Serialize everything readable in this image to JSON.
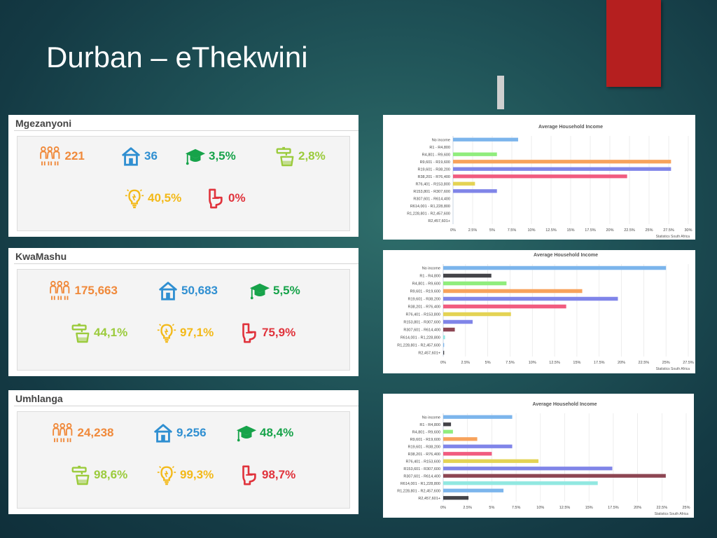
{
  "slide": {
    "title": "Durban – eThekwini"
  },
  "colors": {
    "orange": "#f0893a",
    "blue": "#2f8fd1",
    "green": "#17a34a",
    "lime": "#9bcb3c",
    "yellow": "#f3b918",
    "red": "#e0333c"
  },
  "panels": [
    {
      "name": "Mgezanyoni",
      "stats": {
        "population": "221",
        "households": "36",
        "education": "3,5%",
        "water": "2,8%",
        "electricity": "40,5%",
        "sanitation": "0%"
      }
    },
    {
      "name": "KwaMashu",
      "stats": {
        "population": "175,663",
        "households": "50,683",
        "education": "5,5%",
        "water": "44,1%",
        "electricity": "97,1%",
        "sanitation": "75,9%"
      }
    },
    {
      "name": "Umhlanga",
      "stats": {
        "population": "24,238",
        "households": "9,256",
        "education": "48,4%",
        "water": "98,6%",
        "electricity": "99,3%",
        "sanitation": "98,7%"
      }
    }
  ],
  "icons": {
    "population": "people-group-icon",
    "households": "house-icon",
    "education": "graduation-cap-icon",
    "water": "water-tap-icon",
    "electricity": "light-bulb-icon",
    "sanitation": "toilet-icon"
  },
  "chart_data": [
    {
      "type": "bar",
      "orientation": "horizontal",
      "title": "Average Household Income",
      "source": "Statistics South Africa",
      "categories": [
        "No income",
        "R1 - R4,800",
        "R4,801 - R9,600",
        "R9,601 - R19,600",
        "R19,601 - R38,200",
        "R38,201 - R76,400",
        "R76,401 - R153,800",
        "R153,801 - R307,600",
        "R307,601 - R614,400",
        "R614,001 - R1,228,800",
        "R1,228,801 - R2,457,600",
        "R2,457,601+"
      ],
      "values": [
        8.3,
        0,
        5.6,
        27.8,
        27.8,
        22.2,
        2.8,
        5.6,
        0,
        0,
        0,
        0
      ],
      "colors": [
        "#7cb5ec",
        "#434348",
        "#90ed7d",
        "#f7a35c",
        "#8085e9",
        "#f15c80",
        "#e4d354",
        "#8085e8",
        "#8d4653",
        "#91e8e1",
        "#7cb5ec",
        "#434348"
      ],
      "xlim": [
        0,
        30
      ],
      "xticks": [
        "0%",
        "2.5%",
        "5%",
        "7.5%",
        "10%",
        "12.5%",
        "15%",
        "17.5%",
        "20%",
        "22.5%",
        "25%",
        "27.5%",
        "30%"
      ],
      "grid": true
    },
    {
      "type": "bar",
      "orientation": "horizontal",
      "title": "Average Household Income",
      "source": "Statistics South Africa",
      "categories": [
        "No income",
        "R1 - R4,800",
        "R4,801 - R9,600",
        "R9,601 - R19,600",
        "R19,601 - R38,200",
        "R38,201 - R76,400",
        "R76,401 - R153,800",
        "R153,801 - R307,600",
        "R307,601 - R614,400",
        "R614,001 - R1,228,800",
        "R1,228,801 - R2,457,600",
        "R2,457,601+"
      ],
      "values": [
        25.0,
        5.4,
        7.1,
        15.6,
        19.6,
        13.8,
        7.6,
        3.3,
        1.3,
        0.2,
        0.1,
        0.1
      ],
      "colors": [
        "#7cb5ec",
        "#434348",
        "#90ed7d",
        "#f7a35c",
        "#8085e9",
        "#f15c80",
        "#e4d354",
        "#8085e8",
        "#8d4653",
        "#91e8e1",
        "#7cb5ec",
        "#434348"
      ],
      "xlim": [
        0,
        27.5
      ],
      "xticks": [
        "0%",
        "2.5%",
        "5%",
        "7.5%",
        "10%",
        "12.5%",
        "15%",
        "17.5%",
        "20%",
        "22.5%",
        "25%",
        "27.5%"
      ],
      "grid": true
    },
    {
      "type": "bar",
      "orientation": "horizontal",
      "title": "Average Household Income",
      "source": "Statistics South Africa",
      "categories": [
        "No income",
        "R1 - R4,800",
        "R4,801 - R9,600",
        "R9,601 - R19,600",
        "R19,601 - R38,200",
        "R38,201 - R76,400",
        "R76,401 - R153,600",
        "R153,601 - R307,600",
        "R307,601 - R614,400",
        "R614,001 - R1,228,800",
        "R1,228,801 - R2,457,600",
        "R2,457,601+"
      ],
      "values": [
        7.1,
        0.8,
        1.0,
        3.5,
        7.1,
        5.0,
        9.8,
        17.4,
        22.9,
        15.9,
        6.2,
        2.6
      ],
      "colors": [
        "#7cb5ec",
        "#434348",
        "#90ed7d",
        "#f7a35c",
        "#8085e9",
        "#f15c80",
        "#e4d354",
        "#8085e8",
        "#8d4653",
        "#91e8e1",
        "#7cb5ec",
        "#434348"
      ],
      "xlim": [
        0,
        25
      ],
      "xticks": [
        "0%",
        "2.5%",
        "5%",
        "7.5%",
        "10%",
        "12.5%",
        "15%",
        "17.5%",
        "20%",
        "22.5%",
        "25%"
      ],
      "grid": true
    }
  ]
}
